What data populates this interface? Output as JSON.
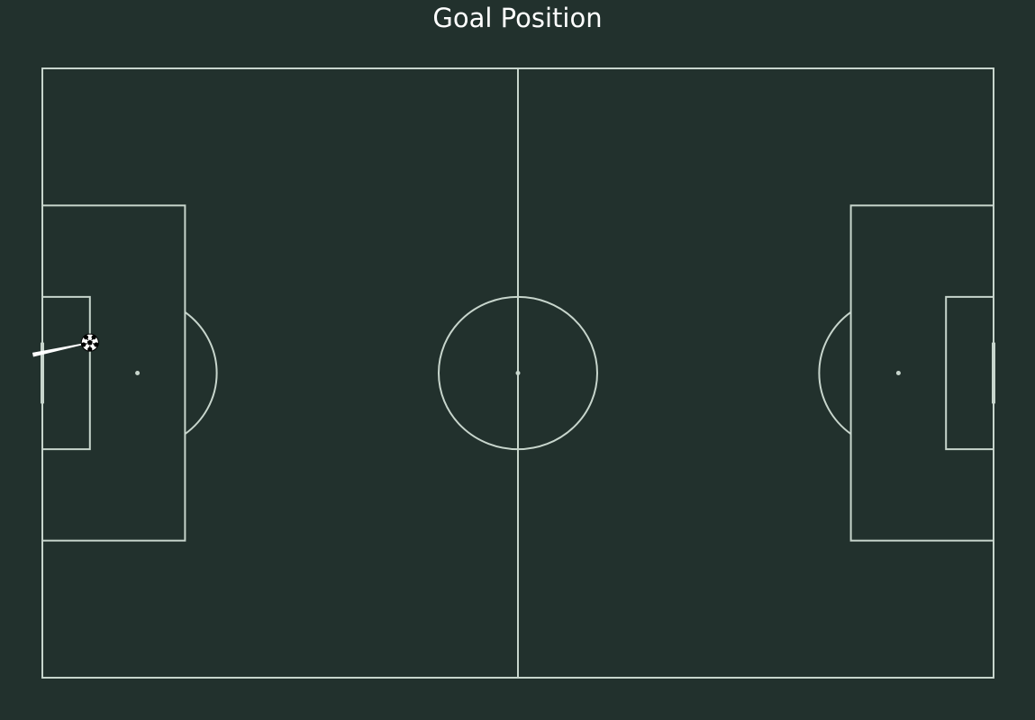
{
  "title": "Goal Position",
  "colors": {
    "background": "#22312d",
    "pitch_lines": "#c7d5cc",
    "title_text": "#ffffff",
    "shot_trail": "#ffffff",
    "ball_fill": "#ffffff",
    "ball_patches": "#000000"
  },
  "pitch": {
    "length": 120,
    "width": 80
  },
  "shot": {
    "start": {
      "x": 6,
      "y": 36
    },
    "end": {
      "x": -1.2,
      "y": 37.6
    }
  },
  "icons": {
    "ball": "soccer-ball-icon"
  }
}
